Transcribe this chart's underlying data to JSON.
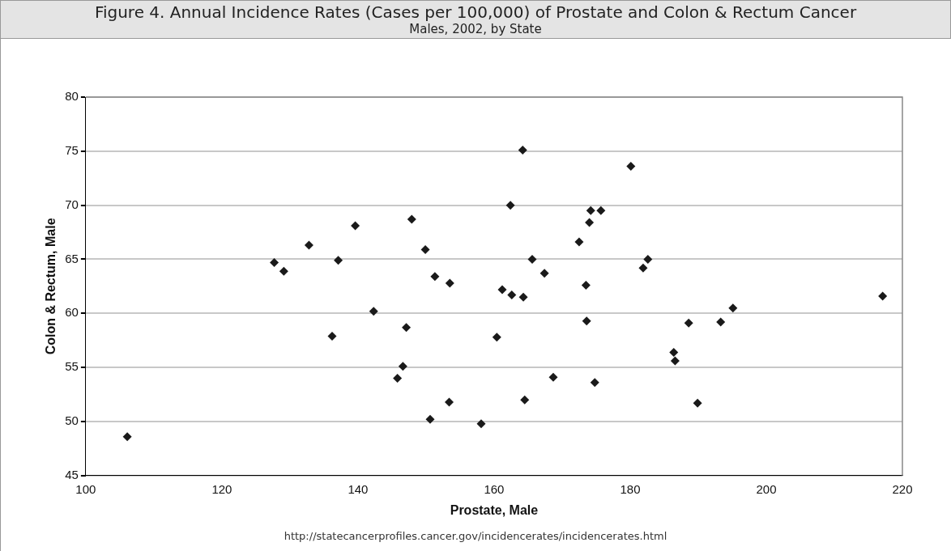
{
  "chart_data": {
    "type": "scatter",
    "title": "Figure 4. Annual Incidence Rates (Cases per 100,000) of Prostate and Colon & Rectum Cancer",
    "subtitle": "Males, 2002, by State",
    "xlabel": "Prostate, Male",
    "ylabel": "Colon & Rectum, Male",
    "annotations": [
      "http://statecancerprofiles.cancer.gov/incidencerates/incidencerates.html"
    ],
    "xlim": [
      100,
      220
    ],
    "xticks": [
      100,
      120,
      140,
      160,
      180,
      200,
      220
    ],
    "ylim": [
      45,
      80
    ],
    "yticks": [
      45,
      50,
      55,
      60,
      65,
      70,
      75,
      80
    ],
    "grid": "y",
    "marker": "diamond",
    "legend": false,
    "series": [
      {
        "color": "#1a1a1a",
        "x": [
          106.1,
          127.7,
          129.1,
          132.8,
          136.2,
          137.1,
          139.6,
          142.3,
          145.8,
          146.6,
          147.1,
          147.9,
          149.9,
          150.6,
          151.3,
          153.4,
          153.5,
          158.1,
          160.4,
          161.2,
          162.4,
          162.6,
          164.2,
          164.3,
          164.5,
          165.6,
          167.4,
          168.7,
          172.5,
          173.5,
          173.6,
          174.0,
          174.2,
          174.8,
          175.7,
          180.1,
          181.9,
          182.6,
          186.4,
          186.6,
          188.6,
          189.9,
          193.3,
          195.1,
          217.1
        ],
        "values": [
          48.6,
          64.7,
          63.9,
          66.3,
          57.9,
          64.9,
          68.1,
          60.2,
          54.0,
          55.1,
          58.7,
          68.7,
          65.9,
          50.2,
          63.4,
          51.8,
          62.8,
          49.8,
          57.8,
          62.2,
          70.0,
          61.7,
          75.1,
          61.5,
          52.0,
          65.0,
          63.7,
          54.1,
          66.6,
          62.6,
          59.3,
          68.4,
          69.5,
          53.6,
          69.5,
          73.6,
          64.2,
          65.0,
          56.4,
          55.6,
          59.1,
          51.7,
          59.2,
          60.5,
          61.6
        ]
      }
    ]
  }
}
